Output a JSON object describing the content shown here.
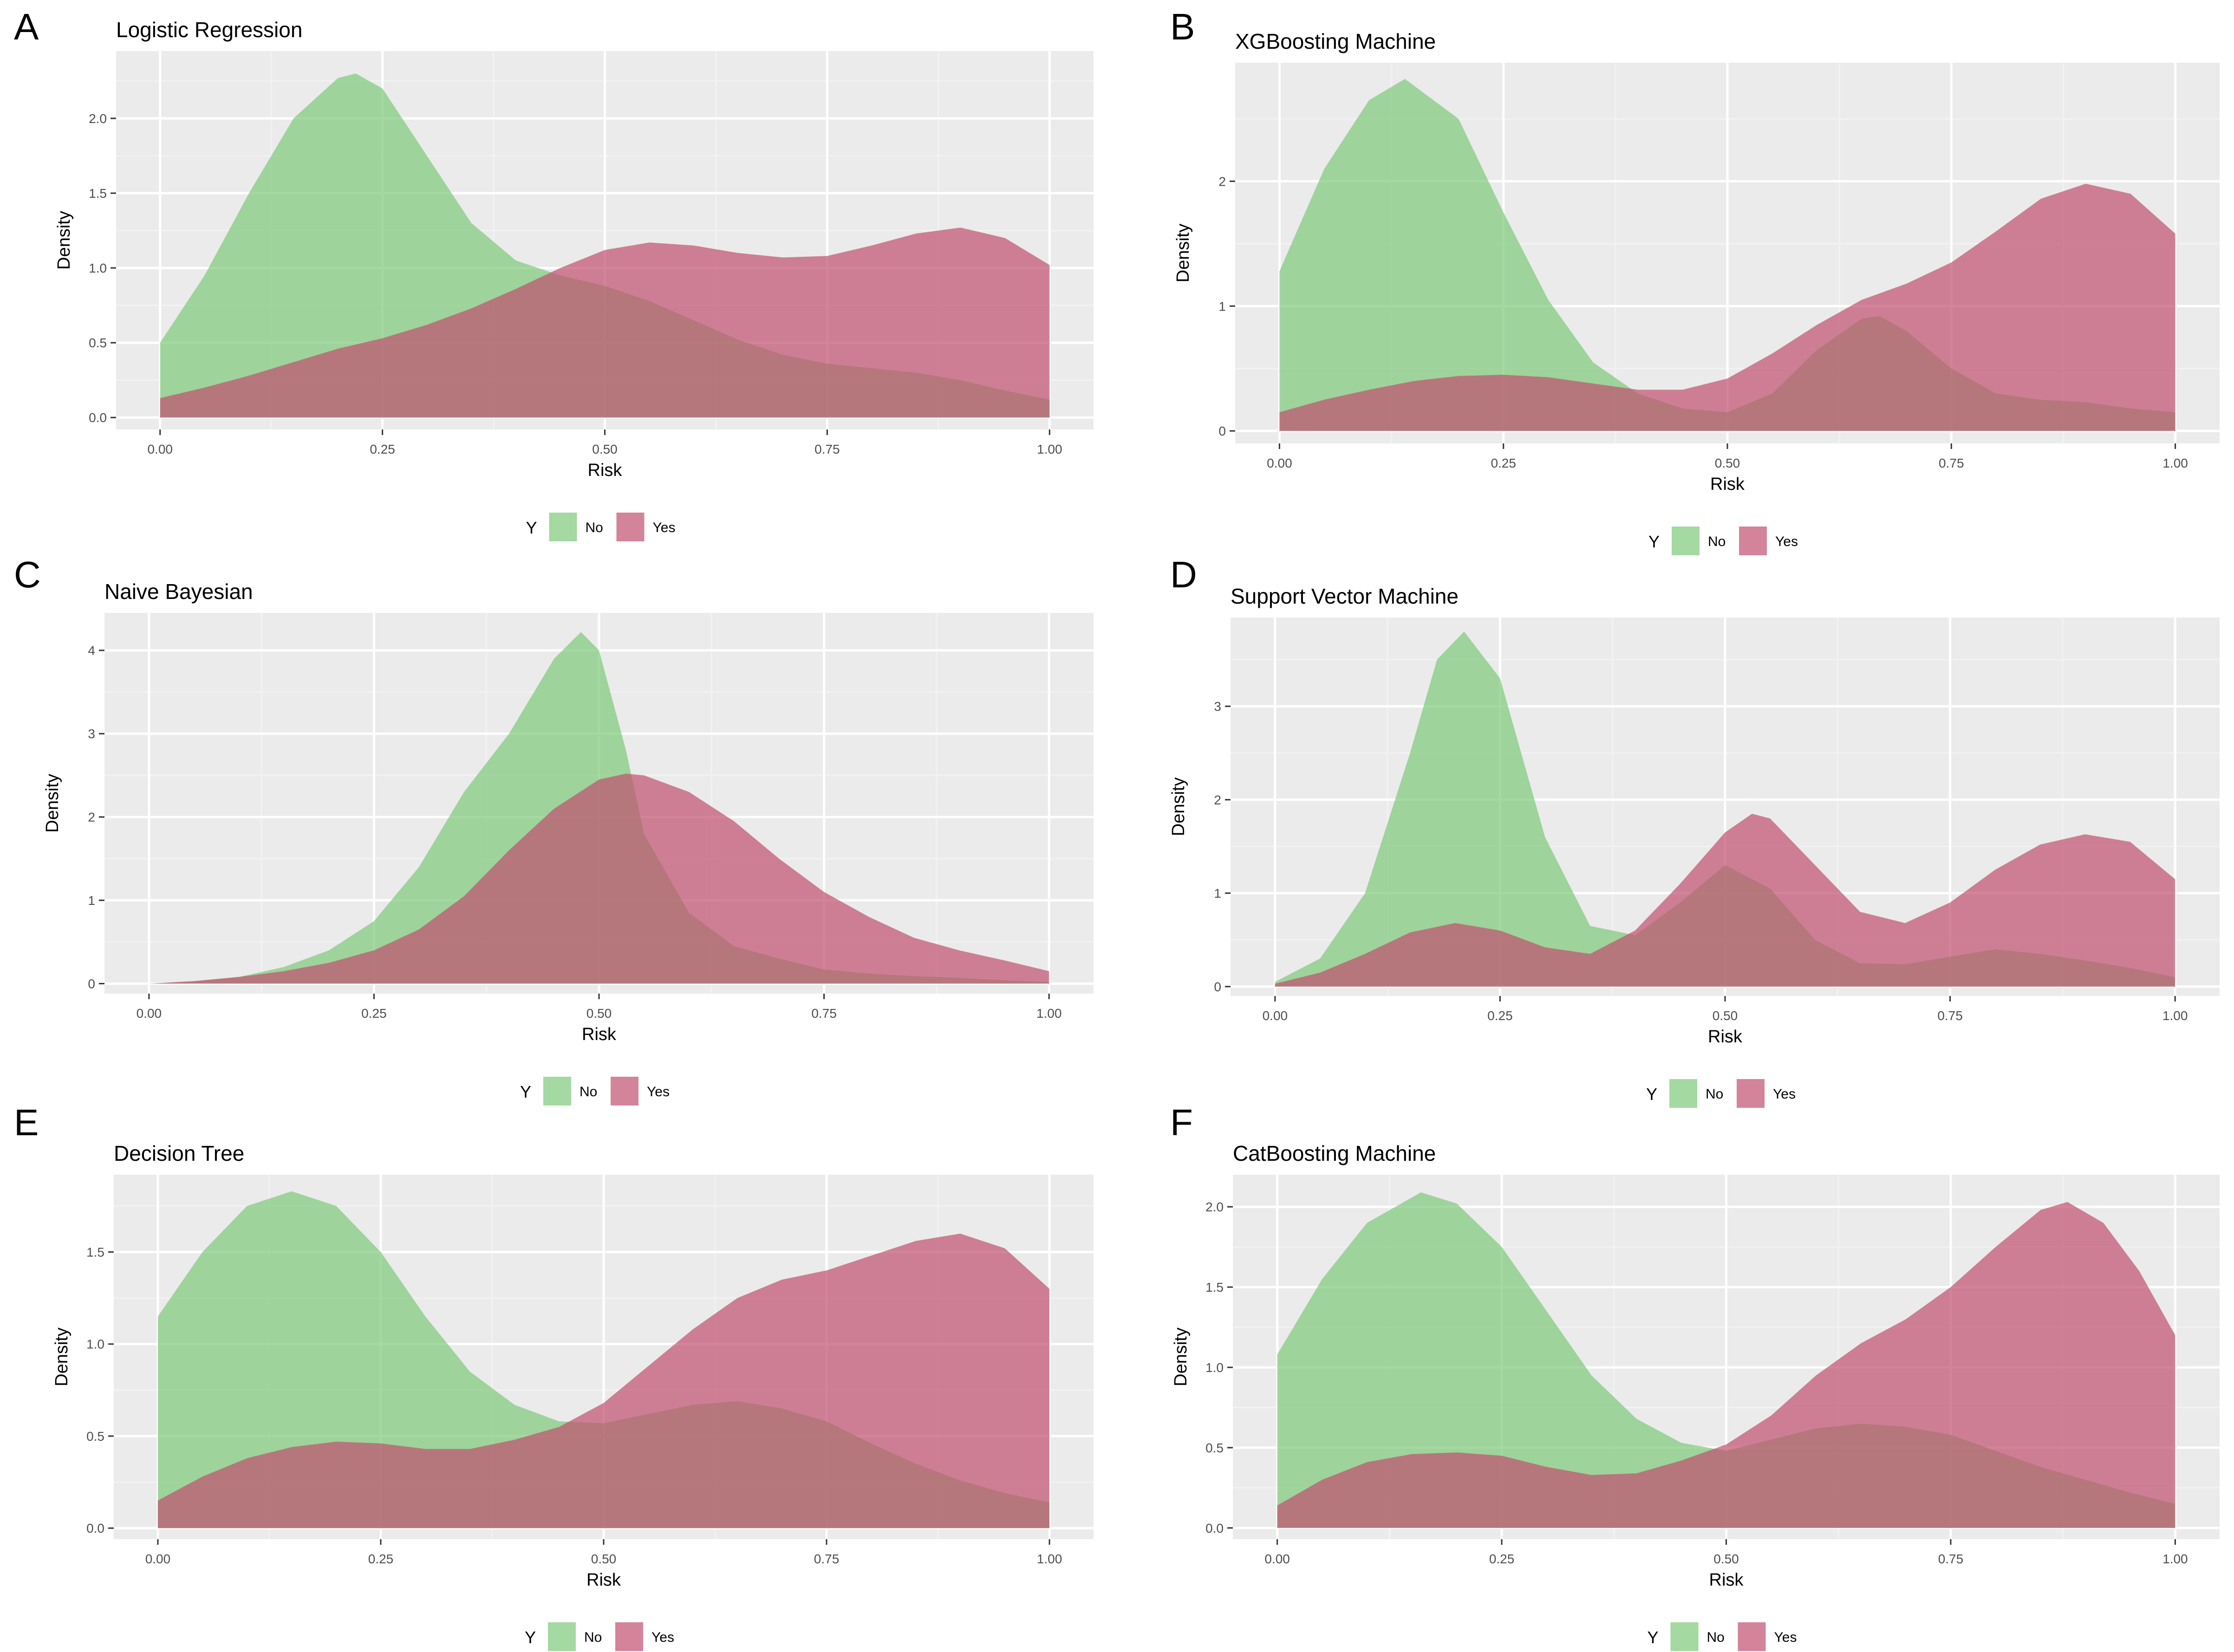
{
  "figure": {
    "background": "#ffffff"
  },
  "style": {
    "panel_bg": "#ebebeb",
    "grid_major": "#ffffff",
    "grid_minor": "#f2f2f2",
    "text_dark": "#000000",
    "tick_text": "#4d4d4d",
    "fill_no": "#7ec97a",
    "fill_yes": "#c0506f",
    "fill_opacity": 0.7
  },
  "chart_data": [
    {
      "type": "area",
      "panel_label": "A",
      "title": "Logistic Regression",
      "xlabel": "Risk",
      "ylabel": "Density",
      "xlim": [
        0,
        1
      ],
      "ylim": [
        -0.08,
        2.45
      ],
      "x_ticks": [
        0,
        0.25,
        0.5,
        0.75,
        1
      ],
      "x_tick_labels": [
        "0.00",
        "0.25",
        "0.50",
        "0.75",
        "1.00"
      ],
      "y_ticks": [
        0,
        0.5,
        1,
        1.5,
        2
      ],
      "y_tick_labels": [
        "0.0",
        "0.5",
        "1.0",
        "1.5",
        "2.0"
      ],
      "legend": {
        "title": "Y",
        "position": "bottom",
        "entries": [
          "No",
          "Yes"
        ]
      },
      "series": [
        {
          "name": "No",
          "x": [
            0,
            0.05,
            0.1,
            0.15,
            0.2,
            0.22,
            0.25,
            0.3,
            0.35,
            0.4,
            0.45,
            0.5,
            0.55,
            0.6,
            0.65,
            0.7,
            0.75,
            0.8,
            0.85,
            0.9,
            0.95,
            1.0
          ],
          "y": [
            0.5,
            0.95,
            1.5,
            2.0,
            2.27,
            2.3,
            2.2,
            1.75,
            1.3,
            1.05,
            0.95,
            0.88,
            0.78,
            0.65,
            0.52,
            0.42,
            0.36,
            0.33,
            0.3,
            0.25,
            0.18,
            0.12
          ]
        },
        {
          "name": "Yes",
          "x": [
            0,
            0.05,
            0.1,
            0.15,
            0.2,
            0.25,
            0.3,
            0.35,
            0.4,
            0.45,
            0.5,
            0.55,
            0.6,
            0.65,
            0.7,
            0.75,
            0.8,
            0.85,
            0.9,
            0.95,
            1.0
          ],
          "y": [
            0.13,
            0.2,
            0.28,
            0.37,
            0.46,
            0.53,
            0.62,
            0.73,
            0.86,
            1.0,
            1.12,
            1.17,
            1.15,
            1.1,
            1.07,
            1.08,
            1.15,
            1.23,
            1.27,
            1.2,
            1.02
          ]
        }
      ]
    },
    {
      "type": "area",
      "panel_label": "B",
      "title": "XGBoosting Machine",
      "xlabel": "Risk",
      "ylabel": "Density",
      "xlim": [
        0,
        1
      ],
      "ylim": [
        -0.1,
        2.95
      ],
      "x_ticks": [
        0,
        0.25,
        0.5,
        0.75,
        1
      ],
      "x_tick_labels": [
        "0.00",
        "0.25",
        "0.50",
        "0.75",
        "1.00"
      ],
      "y_ticks": [
        0,
        1,
        2
      ],
      "y_tick_labels": [
        "0",
        "1",
        "2"
      ],
      "legend": {
        "title": "Y",
        "position": "bottom",
        "entries": [
          "No",
          "Yes"
        ]
      },
      "series": [
        {
          "name": "No",
          "x": [
            0,
            0.05,
            0.1,
            0.14,
            0.2,
            0.25,
            0.3,
            0.35,
            0.4,
            0.45,
            0.5,
            0.55,
            0.6,
            0.65,
            0.67,
            0.7,
            0.75,
            0.8,
            0.85,
            0.9,
            0.95,
            1.0
          ],
          "y": [
            1.28,
            2.1,
            2.65,
            2.82,
            2.5,
            1.75,
            1.05,
            0.55,
            0.3,
            0.18,
            0.15,
            0.3,
            0.65,
            0.9,
            0.92,
            0.8,
            0.5,
            0.3,
            0.25,
            0.23,
            0.18,
            0.15
          ]
        },
        {
          "name": "Yes",
          "x": [
            0,
            0.05,
            0.1,
            0.15,
            0.2,
            0.25,
            0.3,
            0.35,
            0.4,
            0.45,
            0.5,
            0.55,
            0.6,
            0.65,
            0.7,
            0.75,
            0.8,
            0.85,
            0.9,
            0.95,
            1.0
          ],
          "y": [
            0.15,
            0.25,
            0.33,
            0.4,
            0.44,
            0.45,
            0.43,
            0.38,
            0.33,
            0.33,
            0.42,
            0.62,
            0.85,
            1.05,
            1.18,
            1.35,
            1.6,
            1.86,
            1.98,
            1.9,
            1.58
          ]
        }
      ]
    },
    {
      "type": "area",
      "panel_label": "C",
      "title": "Naive Bayesian",
      "xlabel": "Risk",
      "ylabel": "Density",
      "xlim": [
        0,
        1
      ],
      "ylim": [
        -0.12,
        4.45
      ],
      "x_ticks": [
        0,
        0.25,
        0.5,
        0.75,
        1
      ],
      "x_tick_labels": [
        "0.00",
        "0.25",
        "0.50",
        "0.75",
        "1.00"
      ],
      "y_ticks": [
        0,
        1,
        2,
        3,
        4
      ],
      "y_tick_labels": [
        "0",
        "1",
        "2",
        "3",
        "4"
      ],
      "legend": {
        "title": "Y",
        "position": "bottom",
        "entries": [
          "No",
          "Yes"
        ]
      },
      "series": [
        {
          "name": "No",
          "x": [
            0,
            0.05,
            0.1,
            0.15,
            0.2,
            0.25,
            0.3,
            0.35,
            0.4,
            0.45,
            0.48,
            0.5,
            0.53,
            0.55,
            0.6,
            0.65,
            0.7,
            0.75,
            0.8,
            0.85,
            0.9,
            0.95,
            1.0
          ],
          "y": [
            0.0,
            0.03,
            0.08,
            0.2,
            0.4,
            0.75,
            1.4,
            2.3,
            3.0,
            3.9,
            4.22,
            4.0,
            2.8,
            1.8,
            0.85,
            0.45,
            0.3,
            0.17,
            0.12,
            0.09,
            0.07,
            0.04,
            0.02
          ]
        },
        {
          "name": "Yes",
          "x": [
            0,
            0.05,
            0.1,
            0.15,
            0.2,
            0.25,
            0.3,
            0.35,
            0.4,
            0.45,
            0.5,
            0.53,
            0.55,
            0.6,
            0.65,
            0.7,
            0.75,
            0.8,
            0.85,
            0.9,
            0.95,
            1.0
          ],
          "y": [
            0.0,
            0.03,
            0.08,
            0.15,
            0.25,
            0.4,
            0.65,
            1.05,
            1.6,
            2.1,
            2.45,
            2.52,
            2.5,
            2.3,
            1.95,
            1.5,
            1.1,
            0.8,
            0.55,
            0.4,
            0.28,
            0.15
          ]
        }
      ]
    },
    {
      "type": "area",
      "panel_label": "D",
      "title": "Support Vector Machine",
      "xlabel": "Risk",
      "ylabel": "Density",
      "xlim": [
        0,
        1
      ],
      "ylim": [
        -0.1,
        3.95
      ],
      "x_ticks": [
        0,
        0.25,
        0.5,
        0.75,
        1
      ],
      "x_tick_labels": [
        "0.00",
        "0.25",
        "0.50",
        "0.75",
        "1.00"
      ],
      "y_ticks": [
        0,
        1,
        2,
        3
      ],
      "y_tick_labels": [
        "0",
        "1",
        "2",
        "3"
      ],
      "legend": {
        "title": "Y",
        "position": "bottom",
        "entries": [
          "No",
          "Yes"
        ]
      },
      "series": [
        {
          "name": "No",
          "x": [
            0,
            0.05,
            0.1,
            0.15,
            0.18,
            0.21,
            0.25,
            0.3,
            0.35,
            0.4,
            0.45,
            0.5,
            0.55,
            0.6,
            0.65,
            0.7,
            0.75,
            0.8,
            0.85,
            0.9,
            0.95,
            1.0
          ],
          "y": [
            0.05,
            0.3,
            1.0,
            2.5,
            3.5,
            3.8,
            3.3,
            1.6,
            0.65,
            0.55,
            0.9,
            1.3,
            1.05,
            0.5,
            0.25,
            0.24,
            0.32,
            0.4,
            0.35,
            0.28,
            0.2,
            0.1
          ]
        },
        {
          "name": "Yes",
          "x": [
            0,
            0.05,
            0.1,
            0.15,
            0.2,
            0.25,
            0.3,
            0.35,
            0.4,
            0.45,
            0.5,
            0.53,
            0.55,
            0.6,
            0.65,
            0.7,
            0.75,
            0.8,
            0.85,
            0.9,
            0.95,
            1.0
          ],
          "y": [
            0.03,
            0.15,
            0.35,
            0.58,
            0.68,
            0.6,
            0.42,
            0.35,
            0.6,
            1.1,
            1.65,
            1.85,
            1.8,
            1.3,
            0.8,
            0.68,
            0.9,
            1.25,
            1.52,
            1.63,
            1.55,
            1.15
          ]
        }
      ]
    },
    {
      "type": "area",
      "panel_label": "E",
      "title": "Decision Tree",
      "xlabel": "Risk",
      "ylabel": "Density",
      "xlim": [
        0,
        1
      ],
      "ylim": [
        -0.06,
        1.92
      ],
      "x_ticks": [
        0,
        0.25,
        0.5,
        0.75,
        1
      ],
      "x_tick_labels": [
        "0.00",
        "0.25",
        "0.50",
        "0.75",
        "1.00"
      ],
      "y_ticks": [
        0,
        0.5,
        1,
        1.5
      ],
      "y_tick_labels": [
        "0.0",
        "0.5",
        "1.0",
        "1.5"
      ],
      "legend": {
        "title": "Y",
        "position": "bottom",
        "entries": [
          "No",
          "Yes"
        ]
      },
      "series": [
        {
          "name": "No",
          "x": [
            0,
            0.05,
            0.1,
            0.15,
            0.2,
            0.25,
            0.3,
            0.35,
            0.4,
            0.45,
            0.5,
            0.55,
            0.6,
            0.65,
            0.7,
            0.75,
            0.8,
            0.85,
            0.9,
            0.95,
            1.0
          ],
          "y": [
            1.15,
            1.5,
            1.75,
            1.83,
            1.75,
            1.5,
            1.15,
            0.85,
            0.67,
            0.58,
            0.57,
            0.62,
            0.67,
            0.69,
            0.65,
            0.58,
            0.46,
            0.35,
            0.26,
            0.19,
            0.14
          ]
        },
        {
          "name": "Yes",
          "x": [
            0,
            0.05,
            0.1,
            0.15,
            0.2,
            0.25,
            0.3,
            0.35,
            0.4,
            0.45,
            0.5,
            0.55,
            0.6,
            0.65,
            0.7,
            0.75,
            0.8,
            0.85,
            0.9,
            0.95,
            1.0
          ],
          "y": [
            0.15,
            0.28,
            0.38,
            0.44,
            0.47,
            0.46,
            0.43,
            0.43,
            0.48,
            0.55,
            0.68,
            0.88,
            1.08,
            1.25,
            1.35,
            1.4,
            1.48,
            1.56,
            1.6,
            1.52,
            1.3
          ]
        }
      ]
    },
    {
      "type": "area",
      "panel_label": "F",
      "title": "CatBoosting Machine",
      "xlabel": "Risk",
      "ylabel": "Density",
      "xlim": [
        0,
        1
      ],
      "ylim": [
        -0.07,
        2.2
      ],
      "x_ticks": [
        0,
        0.25,
        0.5,
        0.75,
        1
      ],
      "x_tick_labels": [
        "0.00",
        "0.25",
        "0.50",
        "0.75",
        "1.00"
      ],
      "y_ticks": [
        0,
        0.5,
        1,
        1.5,
        2
      ],
      "y_tick_labels": [
        "0.0",
        "0.5",
        "1.0",
        "1.5",
        "2.0"
      ],
      "legend": {
        "title": "Y",
        "position": "bottom",
        "entries": [
          "No",
          "Yes"
        ]
      },
      "series": [
        {
          "name": "No",
          "x": [
            0,
            0.05,
            0.1,
            0.16,
            0.2,
            0.25,
            0.3,
            0.35,
            0.4,
            0.45,
            0.5,
            0.55,
            0.6,
            0.65,
            0.7,
            0.75,
            0.8,
            0.85,
            0.9,
            0.95,
            1.0
          ],
          "y": [
            1.08,
            1.55,
            1.9,
            2.09,
            2.02,
            1.75,
            1.35,
            0.95,
            0.68,
            0.53,
            0.48,
            0.55,
            0.62,
            0.65,
            0.63,
            0.58,
            0.48,
            0.38,
            0.3,
            0.22,
            0.15
          ]
        },
        {
          "name": "Yes",
          "x": [
            0,
            0.05,
            0.1,
            0.15,
            0.2,
            0.25,
            0.3,
            0.35,
            0.4,
            0.45,
            0.5,
            0.55,
            0.6,
            0.65,
            0.7,
            0.75,
            0.8,
            0.85,
            0.88,
            0.92,
            0.96,
            1.0
          ],
          "y": [
            0.14,
            0.3,
            0.41,
            0.46,
            0.47,
            0.45,
            0.38,
            0.33,
            0.34,
            0.42,
            0.52,
            0.7,
            0.95,
            1.15,
            1.3,
            1.5,
            1.75,
            1.98,
            2.03,
            1.9,
            1.6,
            1.2
          ]
        }
      ]
    }
  ]
}
